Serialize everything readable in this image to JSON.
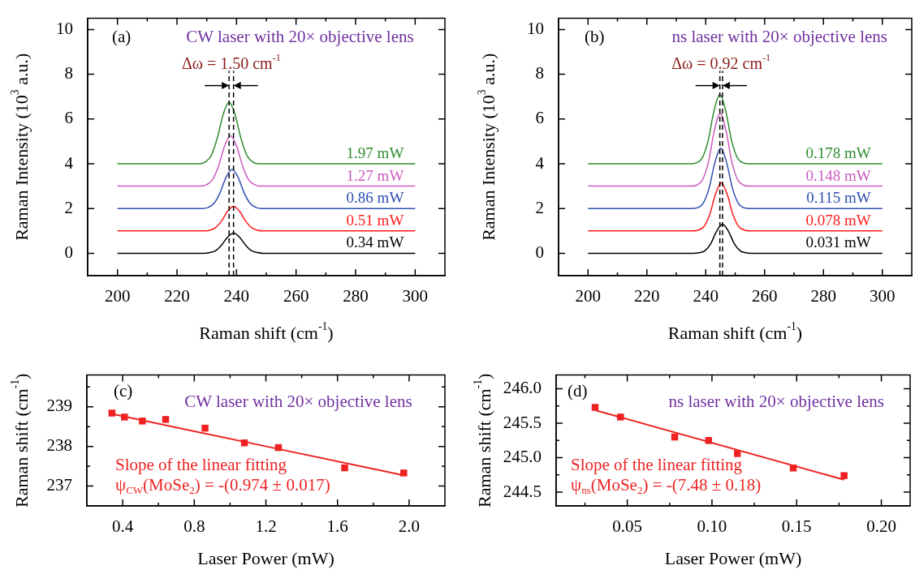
{
  "chart_data": [
    {
      "type": "line",
      "xlabel": "Raman shift (cm$^{-1}$)",
      "ylabel": "Raman Intensity (10$^{3}$ a.u.)",
      "xlim": [
        190,
        310
      ],
      "ylim": [
        -1,
        10.5
      ],
      "xticks": [
        200,
        {
          "value": 210,
          "label": null
        },
        220,
        {
          "value": 230,
          "label": null
        },
        240,
        {
          "value": 250,
          "label": null
        },
        260,
        {
          "value": 270,
          "label": null
        },
        280,
        {
          "value": 290,
          "label": null
        },
        300
      ],
      "yticks": [
        0,
        2,
        4,
        6,
        8,
        10
      ],
      "marker": "none",
      "ref_lines": [
        {
          "axis": "x",
          "value": 237.5,
          "color": "#000000",
          "line_style": "dashed"
        },
        {
          "axis": "x",
          "value": 239.0,
          "color": "#000000",
          "line_style": "dashed"
        }
      ],
      "annotations": [
        "(a)",
        "CW laser with 20× objective lens",
        "Δω = 1.50 cm$^{-1}$"
      ],
      "legend": "right",
      "series": [
        {
          "name": "0.34 mW",
          "color": "#000000",
          "x": [
            200,
            229,
            231,
            233,
            235,
            237,
            239,
            241,
            243,
            245,
            247,
            249,
            300
          ],
          "values": [
            0,
            0,
            0.03,
            0.12,
            0.37,
            0.72,
            0.9,
            0.72,
            0.37,
            0.12,
            0.03,
            0,
            0
          ]
        },
        {
          "name": "0.51 mW",
          "color": "#ff1a1a",
          "x": [
            200,
            229,
            231,
            233,
            235,
            237,
            239,
            241,
            243,
            245,
            247,
            249,
            300
          ],
          "values": [
            1,
            1,
            1.03,
            1.15,
            1.45,
            1.88,
            2.1,
            1.88,
            1.45,
            1.15,
            1.03,
            1,
            1
          ]
        },
        {
          "name": "0.86 mW",
          "color": "#2d4fb0",
          "x": [
            200,
            228.5,
            230.5,
            232.5,
            234.5,
            236.5,
            238.5,
            240.5,
            242.5,
            244.5,
            246.5,
            248.5,
            300
          ],
          "values": [
            2,
            2,
            2.05,
            2.24,
            2.72,
            3.4,
            3.75,
            3.4,
            2.72,
            2.24,
            2.05,
            2,
            2
          ]
        },
        {
          "name": "1.27 mW",
          "color": "#c95bbd",
          "x": [
            200,
            228,
            230,
            232,
            234,
            236,
            238,
            240,
            242,
            244,
            246,
            248,
            300
          ],
          "values": [
            3,
            3,
            3.07,
            3.3,
            3.92,
            4.8,
            5.25,
            4.8,
            3.92,
            3.3,
            3.07,
            3,
            3
          ]
        },
        {
          "name": "1.97 mW",
          "color": "#2e8b2e",
          "x": [
            200,
            227.5,
            229.5,
            231.5,
            233.5,
            235.5,
            237.5,
            239.5,
            241.5,
            243.5,
            245.5,
            247.5,
            300
          ],
          "values": [
            4,
            4,
            4.08,
            4.37,
            5.13,
            6.2,
            6.75,
            6.2,
            5.13,
            4.37,
            4.08,
            4,
            4
          ]
        }
      ]
    },
    {
      "type": "line",
      "xlabel": "Raman shift (cm$^{-1}$)",
      "ylabel": "Raman Intensity (10$^{3}$ a.u.)",
      "xlim": [
        190,
        310
      ],
      "ylim": [
        -1,
        10.5
      ],
      "xticks": [
        200,
        {
          "value": 210,
          "label": null
        },
        220,
        {
          "value": 230,
          "label": null
        },
        240,
        {
          "value": 250,
          "label": null
        },
        260,
        {
          "value": 270,
          "label": null
        },
        280,
        {
          "value": 290,
          "label": null
        },
        300
      ],
      "yticks": [
        0,
        2,
        4,
        6,
        8,
        10
      ],
      "marker": "none",
      "ref_lines": [
        {
          "axis": "x",
          "value": 244.8,
          "color": "#000000",
          "line_style": "dashed"
        },
        {
          "axis": "x",
          "value": 245.7,
          "color": "#000000",
          "line_style": "dashed"
        }
      ],
      "annotations": [
        "(b)",
        "ns laser with 20× objective lens",
        "Δω = 0.92 cm$^{-1}$"
      ],
      "legend": "right",
      "series": [
        {
          "name": "0.031 mW",
          "color": "#000000",
          "x": [
            200,
            235.7,
            237.7,
            239.7,
            241.7,
            243.7,
            245.7,
            247.7,
            249.7,
            251.7,
            253.7,
            255.7,
            300
          ],
          "values": [
            0,
            0,
            0.02,
            0.11,
            0.43,
            0.99,
            1.3,
            0.99,
            0.43,
            0.11,
            0.02,
            0,
            0
          ]
        },
        {
          "name": "0.078 mW",
          "color": "#ff1a1a",
          "x": [
            200,
            235.3,
            237.3,
            239.3,
            241.3,
            243.3,
            245.3,
            247.3,
            249.3,
            251.3,
            253.3,
            255.3,
            300
          ],
          "values": [
            1,
            1,
            1.03,
            1.18,
            1.71,
            2.63,
            3.15,
            2.63,
            1.71,
            1.18,
            1.03,
            1,
            1
          ]
        },
        {
          "name": "0.115 mW",
          "color": "#2d4fb0",
          "x": [
            200,
            235.1,
            237.1,
            239.1,
            241.1,
            243.1,
            245.1,
            247.1,
            249.1,
            251.1,
            253.1,
            255.1,
            300
          ],
          "values": [
            2,
            2,
            2.03,
            2.23,
            2.89,
            4.05,
            4.7,
            4.05,
            2.89,
            2.23,
            2.03,
            2,
            2
          ]
        },
        {
          "name": "0.148 mW",
          "color": "#c95bbd",
          "x": [
            200,
            234.9,
            236.9,
            238.9,
            240.9,
            242.9,
            244.9,
            246.9,
            248.9,
            250.9,
            252.9,
            254.9,
            300
          ],
          "values": [
            3,
            3,
            3.04,
            3.28,
            4.07,
            5.47,
            6.25,
            5.47,
            4.07,
            3.28,
            3.04,
            3,
            3
          ]
        },
        {
          "name": "0.178 mW",
          "color": "#2e8b2e",
          "x": [
            200,
            234.8,
            236.8,
            238.8,
            240.8,
            242.8,
            244.8,
            246.8,
            248.8,
            250.8,
            252.8,
            254.8,
            300
          ],
          "values": [
            4,
            4,
            4.04,
            4.26,
            5.02,
            6.36,
            7.1,
            6.36,
            5.02,
            4.26,
            4.04,
            4,
            4
          ]
        }
      ]
    },
    {
      "type": "scatter",
      "xlabel": "Laser Power (mW)",
      "ylabel": "Raman shift (cm$^{-1}$)",
      "xlim": [
        0.2,
        2.2
      ],
      "ylim": [
        236.5,
        239.8
      ],
      "xticks": [
        0.4,
        {
          "value": 0.6,
          "label": null
        },
        0.8,
        {
          "value": 1.0,
          "label": null
        },
        1.2,
        {
          "value": 1.4,
          "label": null
        },
        1.6,
        {
          "value": 1.8,
          "label": null
        },
        {
          "value": 2.0,
          "label": "2.0"
        }
      ],
      "yticks": [
        237,
        {
          "value": 237.5,
          "label": null
        },
        238,
        {
          "value": 238.5,
          "label": null
        },
        239,
        {
          "value": 239.5,
          "label": null
        }
      ],
      "annotations": [
        "(c)",
        "CW laser with 20× objective lens",
        "Slope of the linear fitting",
        "ψ$_{CW}$(MoSe$_{2}$) = -(0.974 ± 0.017)"
      ],
      "series": [
        {
          "type": "line",
          "marker": "none",
          "color": "#ee2222",
          "x": [
            0.34,
            1.97
          ],
          "values": [
            238.82,
            237.27
          ]
        },
        {
          "type": "scatter",
          "marker": "square",
          "color": "#ee2222",
          "x": [
            0.34,
            0.41,
            0.51,
            0.64,
            0.86,
            1.08,
            1.27,
            1.64,
            1.97
          ],
          "values": [
            238.84,
            238.74,
            238.64,
            238.68,
            238.46,
            238.09,
            237.97,
            237.46,
            237.33
          ]
        }
      ]
    },
    {
      "type": "scatter",
      "xlabel": "Laser Power (mW)",
      "ylabel": "Raman shift (cm$^{-1}$)",
      "xlim": [
        0.008,
        0.217
      ],
      "ylim": [
        244.3,
        246.2
      ],
      "xticks": [
        {
          "value": 0.025,
          "label": null
        },
        0.05,
        {
          "value": 0.075,
          "label": null
        },
        {
          "value": 0.1,
          "label": "0.10"
        },
        {
          "value": 0.125,
          "label": null
        },
        0.15,
        {
          "value": 0.175,
          "label": null
        },
        {
          "value": 0.2,
          "label": "0.20"
        }
      ],
      "yticks": [
        244.5,
        {
          "value": 244.75,
          "label": null
        },
        {
          "value": 245,
          "label": "245.0"
        },
        {
          "value": 245.25,
          "label": null
        },
        245.5,
        {
          "value": 245.75,
          "label": null
        },
        {
          "value": 246,
          "label": "246.0"
        }
      ],
      "annotations": [
        "(d)",
        "ns laser with 20× objective lens",
        "Slope of the linear fitting",
        "ψ$_{ns}$(MoSe$_{2}$) = -(7.48 ± 0.18)"
      ],
      "series": [
        {
          "type": "line",
          "marker": "none",
          "color": "#ee2222",
          "x": [
            0.031,
            0.178
          ],
          "values": [
            245.69,
            244.68
          ]
        },
        {
          "type": "scatter",
          "marker": "square",
          "color": "#ee2222",
          "x": [
            0.031,
            0.046,
            0.078,
            0.098,
            0.115,
            0.148,
            0.178
          ],
          "values": [
            245.73,
            245.59,
            245.3,
            245.25,
            245.06,
            244.85,
            244.74
          ]
        }
      ]
    }
  ]
}
